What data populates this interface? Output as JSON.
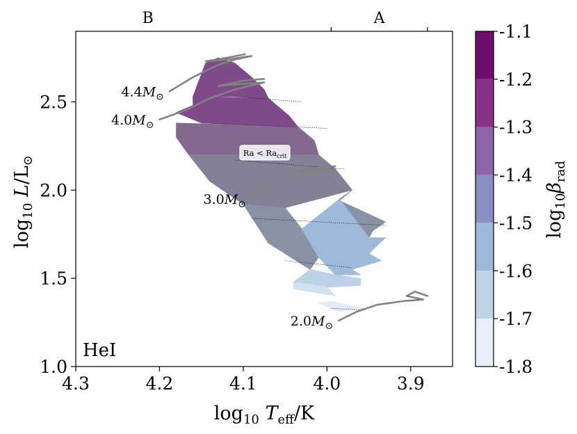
{
  "chart_data": {
    "type": "heatmap",
    "title": "",
    "xlabel_parts": [
      "log",
      "10",
      " ",
      "T",
      "eff",
      "/K"
    ],
    "ylabel_parts": [
      "log",
      "10",
      " ",
      "L",
      "/L",
      "⊙"
    ],
    "x_range": [
      4.3,
      3.85
    ],
    "x_reversed": true,
    "y_range": [
      1.0,
      2.9
    ],
    "x_ticks": [
      "4.3",
      "4.2",
      "4.1",
      "4.0",
      "3.9"
    ],
    "y_ticks": [
      "1.0",
      "1.5",
      "2.0",
      "2.5"
    ],
    "top_axis": {
      "labels": [
        "B",
        "A"
      ],
      "boundaries_logTeff": [
        3.995,
        3.88
      ]
    },
    "panel_label": "HeI",
    "region_annotation": {
      "text_parts": [
        "Ra < Ra",
        "crit"
      ],
      "x": 4.105,
      "y": 2.22
    },
    "colorbar": {
      "label_parts": [
        "log",
        "10",
        "β",
        "rad"
      ],
      "ticks": [
        "-1.1",
        "-1.2",
        "-1.3",
        "-1.4",
        "-1.5",
        "-1.6",
        "-1.7",
        "-1.8"
      ],
      "bins": [
        {
          "range": [
            -1.2,
            -1.1
          ],
          "color": "#6e0d6e"
        },
        {
          "range": [
            -1.3,
            -1.2
          ],
          "color": "#883189"
        },
        {
          "range": [
            -1.4,
            -1.3
          ],
          "color": "#8c64a8"
        },
        {
          "range": [
            -1.5,
            -1.4
          ],
          "color": "#8a8fc3"
        },
        {
          "range": [
            -1.6,
            -1.5
          ],
          "color": "#9db9d9"
        },
        {
          "range": [
            -1.7,
            -1.6
          ],
          "color": "#c0d4e8"
        },
        {
          "range": [
            -1.8,
            -1.7
          ],
          "color": "#e6eff7"
        }
      ]
    },
    "tracks": [
      {
        "label": "4.4",
        "points": [
          [
            4.188,
            2.56
          ],
          [
            4.16,
            2.64
          ],
          [
            4.13,
            2.71
          ],
          [
            4.11,
            2.74
          ],
          [
            4.09,
            2.76
          ],
          [
            4.12,
            2.74
          ],
          [
            4.145,
            2.73
          ],
          [
            4.12,
            2.75
          ],
          [
            4.098,
            2.77
          ]
        ]
      },
      {
        "label": "4.0",
        "points": [
          [
            4.2,
            2.4
          ],
          [
            4.17,
            2.45
          ],
          [
            4.14,
            2.52
          ],
          [
            4.11,
            2.57
          ],
          [
            4.075,
            2.61
          ],
          [
            4.105,
            2.6
          ],
          [
            4.13,
            2.59
          ],
          [
            4.1,
            2.62
          ],
          [
            4.075,
            2.63
          ]
        ]
      },
      {
        "label": "3.0",
        "points": [
          [
            4.09,
            1.95
          ],
          [
            4.065,
            2.01
          ],
          [
            4.04,
            2.07
          ],
          [
            4.015,
            2.1
          ],
          [
            3.99,
            2.12
          ],
          [
            4.02,
            2.11
          ],
          [
            4.045,
            2.1
          ],
          [
            4.02,
            2.12
          ],
          [
            3.99,
            2.135
          ]
        ]
      },
      {
        "label": "2.0",
        "points": [
          [
            3.986,
            1.26
          ],
          [
            3.965,
            1.31
          ],
          [
            3.94,
            1.35
          ],
          [
            3.91,
            1.37
          ],
          [
            3.885,
            1.38
          ],
          [
            3.905,
            1.4
          ],
          [
            3.895,
            1.425
          ],
          [
            3.88,
            1.4
          ]
        ]
      }
    ],
    "regions": [
      {
        "bin": "-1.3",
        "polygon": [
          [
            4.145,
            2.72
          ],
          [
            4.13,
            2.75
          ],
          [
            4.11,
            2.72
          ],
          [
            4.09,
            2.64
          ],
          [
            4.075,
            2.57
          ],
          [
            4.07,
            2.52
          ],
          [
            4.11,
            2.53
          ],
          [
            4.16,
            2.53
          ]
        ]
      },
      {
        "bin": "-1.3",
        "polygon": [
          [
            4.16,
            2.53
          ],
          [
            4.07,
            2.52
          ],
          [
            4.045,
            2.42
          ],
          [
            4.035,
            2.36
          ],
          [
            4.15,
            2.38
          ],
          [
            4.18,
            2.44
          ],
          [
            4.16,
            2.48
          ]
        ]
      },
      {
        "bin": "-1.35",
        "polygon": [
          [
            4.18,
            2.38
          ],
          [
            4.035,
            2.36
          ],
          [
            4.015,
            2.28
          ],
          [
            4.01,
            2.2
          ],
          [
            4.1,
            2.17
          ],
          [
            4.165,
            2.2
          ],
          [
            4.18,
            2.3
          ]
        ]
      },
      {
        "bin": "-1.4",
        "polygon": [
          [
            4.165,
            2.2
          ],
          [
            4.01,
            2.2
          ],
          [
            3.99,
            2.12
          ],
          [
            3.97,
            2.0
          ],
          [
            4.05,
            1.9
          ],
          [
            4.1,
            1.92
          ],
          [
            4.14,
            2.05
          ]
        ]
      },
      {
        "bin": "-1.45",
        "polygon": [
          [
            4.1,
            1.92
          ],
          [
            4.05,
            1.9
          ],
          [
            4.03,
            1.78
          ],
          [
            4.01,
            1.62
          ],
          [
            4.02,
            1.55
          ],
          [
            4.07,
            1.7
          ]
        ]
      },
      {
        "bin": "-1.45",
        "polygon": [
          [
            3.97,
            2.0
          ],
          [
            3.985,
            1.95
          ],
          [
            3.95,
            1.73
          ],
          [
            3.945,
            1.77
          ],
          [
            3.93,
            1.82
          ],
          [
            3.985,
            1.94
          ]
        ]
      },
      {
        "bin": "-1.55",
        "polygon": [
          [
            3.985,
            1.95
          ],
          [
            3.95,
            1.73
          ],
          [
            3.93,
            1.73
          ],
          [
            3.95,
            1.64
          ],
          [
            3.935,
            1.6
          ],
          [
            3.97,
            1.55
          ],
          [
            3.96,
            1.52
          ],
          [
            3.99,
            1.52
          ],
          [
            4.01,
            1.62
          ],
          [
            4.03,
            1.78
          ]
        ]
      },
      {
        "bin": "-1.65",
        "polygon": [
          [
            4.02,
            1.55
          ],
          [
            3.99,
            1.52
          ],
          [
            3.96,
            1.5
          ],
          [
            3.96,
            1.46
          ],
          [
            4.0,
            1.45
          ],
          [
            4.04,
            1.48
          ]
        ]
      },
      {
        "bin": "-1.7",
        "polygon": [
          [
            4.04,
            1.48
          ],
          [
            4.0,
            1.45
          ],
          [
            3.99,
            1.4
          ],
          [
            4.04,
            1.44
          ]
        ]
      },
      {
        "bin": "-1.75",
        "polygon": [
          [
            3.995,
            1.37
          ],
          [
            3.955,
            1.33
          ],
          [
            3.985,
            1.31
          ],
          [
            4.01,
            1.36
          ]
        ]
      }
    ]
  }
}
